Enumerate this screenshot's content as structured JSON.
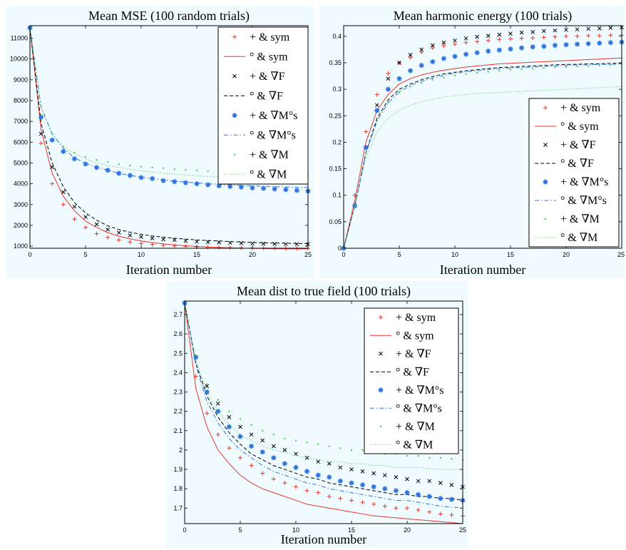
{
  "chart_data": [
    {
      "id": "mse",
      "type": "line",
      "title": "Mean MSE (100 random trials)",
      "xlabel": "Iteration number",
      "ylabel": "",
      "xlim": [
        0,
        25
      ],
      "ylim": [
        900,
        11600
      ],
      "xticks": [
        0,
        5,
        10,
        15,
        20,
        25
      ],
      "yticks": [
        1000,
        2000,
        3000,
        4000,
        5000,
        6000,
        7000,
        8000,
        9000,
        10000,
        11000
      ],
      "legend_position": "top-right",
      "grid": false,
      "x": [
        0,
        1,
        2,
        3,
        4,
        5,
        6,
        7,
        8,
        9,
        10,
        11,
        12,
        13,
        14,
        15,
        16,
        17,
        18,
        19,
        20,
        21,
        22,
        23,
        24,
        25
      ],
      "series": [
        {
          "name": "+ & sym",
          "style": "red-plus",
          "values": [
            11500,
            5950,
            4000,
            3000,
            2300,
            1900,
            1600,
            1420,
            1300,
            1200,
            1130,
            1080,
            1040,
            1010,
            990,
            970,
            950,
            940,
            930,
            920,
            910,
            905,
            900,
            898,
            895,
            892
          ]
        },
        {
          "name": "° & sym",
          "style": "red-solid",
          "values": [
            11500,
            6600,
            4500,
            3400,
            2700,
            2200,
            1900,
            1650,
            1480,
            1350,
            1250,
            1170,
            1110,
            1060,
            1020,
            990,
            960,
            940,
            920,
            905,
            895,
            885,
            878,
            872,
            868,
            864
          ]
        },
        {
          "name": "+ & ∇F",
          "style": "black-x",
          "values": [
            11500,
            6400,
            4800,
            3600,
            2900,
            2400,
            2050,
            1800,
            1650,
            1520,
            1450,
            1380,
            1330,
            1300,
            1250,
            1220,
            1200,
            1180,
            1160,
            1150,
            1130,
            1120,
            1110,
            1100,
            1100,
            1100
          ]
        },
        {
          "name": "° & ∇F",
          "style": "black-dashed",
          "values": [
            11500,
            6900,
            5000,
            3850,
            3100,
            2600,
            2250,
            1980,
            1800,
            1670,
            1570,
            1490,
            1430,
            1380,
            1340,
            1300,
            1270,
            1250,
            1220,
            1200,
            1180,
            1160,
            1150,
            1140,
            1130,
            1120
          ]
        },
        {
          "name": "+ & ∇M°s",
          "style": "blue-star",
          "values": [
            11500,
            7200,
            6100,
            5550,
            5200,
            4950,
            4780,
            4650,
            4500,
            4400,
            4300,
            4250,
            4150,
            4100,
            4050,
            4000,
            3950,
            3900,
            3870,
            3840,
            3800,
            3780,
            3750,
            3720,
            3680,
            3650
          ]
        },
        {
          "name": "° & ∇M°s",
          "style": "blue-dashdot",
          "values": [
            11500,
            7700,
            6400,
            5700,
            5250,
            4980,
            4800,
            4650,
            4500,
            4400,
            4320,
            4250,
            4180,
            4130,
            4080,
            4040,
            4000,
            3970,
            3940,
            3920,
            3900,
            3880,
            3860,
            3850,
            3830,
            3820
          ]
        },
        {
          "name": "+ & ∇M",
          "style": "green-dot",
          "values": [
            11500,
            7300,
            6400,
            5800,
            5500,
            5300,
            5150,
            5050,
            4950,
            4880,
            4820,
            4780,
            4750,
            4700,
            4670,
            4640,
            4610,
            4590,
            4570,
            4560,
            4540,
            4520,
            4510,
            4500,
            4490,
            4480
          ]
        },
        {
          "name": "° & ∇M",
          "style": "green-dotted",
          "values": [
            11500,
            7600,
            6400,
            5800,
            5450,
            5200,
            5000,
            4880,
            4780,
            4700,
            4620,
            4560,
            4500,
            4460,
            4420,
            4380,
            4350,
            4330,
            4310,
            4290,
            4270,
            4250,
            4240,
            4230,
            4220,
            4200
          ]
        }
      ]
    },
    {
      "id": "energy",
      "type": "line",
      "title": "Mean harmonic energy (100 trials)",
      "xlabel": "Iteration number",
      "ylabel": "",
      "xlim": [
        0,
        25
      ],
      "ylim": [
        0,
        0.42
      ],
      "xticks": [
        0,
        5,
        10,
        15,
        20,
        25
      ],
      "yticks": [
        0,
        0.05,
        0.1,
        0.15,
        0.2,
        0.25,
        0.3,
        0.35,
        0.4
      ],
      "legend_position": "bottom-right",
      "grid": false,
      "x": [
        0,
        1,
        2,
        3,
        4,
        5,
        6,
        7,
        8,
        9,
        10,
        11,
        12,
        13,
        14,
        15,
        16,
        17,
        18,
        19,
        20,
        21,
        22,
        23,
        24,
        25
      ],
      "series": [
        {
          "name": "+ & sym",
          "style": "red-plus",
          "values": [
            0,
            0.1,
            0.22,
            0.29,
            0.33,
            0.35,
            0.36,
            0.37,
            0.378,
            0.382,
            0.385,
            0.388,
            0.39,
            0.392,
            0.394,
            0.395,
            0.396,
            0.397,
            0.398,
            0.399,
            0.4,
            0.4,
            0.401,
            0.401,
            0.402,
            0.402
          ]
        },
        {
          "name": "° & sym",
          "style": "red-solid",
          "values": [
            0,
            0.09,
            0.2,
            0.26,
            0.29,
            0.31,
            0.32,
            0.327,
            0.332,
            0.336,
            0.339,
            0.342,
            0.344,
            0.346,
            0.348,
            0.349,
            0.35,
            0.351,
            0.352,
            0.353,
            0.354,
            0.355,
            0.356,
            0.357,
            0.358,
            0.359
          ]
        },
        {
          "name": "+ & ∇F",
          "style": "black-x",
          "values": [
            0,
            0.08,
            0.19,
            0.27,
            0.32,
            0.35,
            0.365,
            0.375,
            0.383,
            0.388,
            0.392,
            0.396,
            0.399,
            0.401,
            0.403,
            0.405,
            0.407,
            0.408,
            0.41,
            0.411,
            0.412,
            0.413,
            0.414,
            0.415,
            0.416,
            0.417
          ]
        },
        {
          "name": "° & ∇F",
          "style": "black-dashed",
          "values": [
            0,
            0.08,
            0.18,
            0.245,
            0.28,
            0.3,
            0.31,
            0.318,
            0.324,
            0.329,
            0.332,
            0.335,
            0.337,
            0.339,
            0.341,
            0.342,
            0.343,
            0.344,
            0.345,
            0.346,
            0.347,
            0.347,
            0.348,
            0.348,
            0.349,
            0.349
          ]
        },
        {
          "name": "+ & ∇M°s",
          "style": "blue-star",
          "values": [
            0,
            0.08,
            0.19,
            0.26,
            0.3,
            0.32,
            0.335,
            0.345,
            0.352,
            0.358,
            0.362,
            0.366,
            0.369,
            0.372,
            0.374,
            0.376,
            0.378,
            0.38,
            0.381,
            0.383,
            0.384,
            0.385,
            0.386,
            0.387,
            0.388,
            0.389
          ]
        },
        {
          "name": "° & ∇M°s",
          "style": "blue-dashdot",
          "values": [
            0,
            0.08,
            0.18,
            0.24,
            0.275,
            0.295,
            0.307,
            0.315,
            0.321,
            0.326,
            0.33,
            0.333,
            0.335,
            0.337,
            0.339,
            0.34,
            0.341,
            0.342,
            0.343,
            0.344,
            0.345,
            0.346,
            0.346,
            0.347,
            0.347,
            0.348
          ]
        },
        {
          "name": "+ & ∇M",
          "style": "green-dot",
          "values": [
            0,
            0.08,
            0.18,
            0.24,
            0.275,
            0.295,
            0.305,
            0.312,
            0.318,
            0.322,
            0.326,
            0.329,
            0.331,
            0.333,
            0.335,
            0.337,
            0.338,
            0.339,
            0.34,
            0.341,
            0.342,
            0.343,
            0.344,
            0.345,
            0.346,
            0.347
          ]
        },
        {
          "name": "° & ∇M",
          "style": "green-dotted",
          "values": [
            0,
            0.08,
            0.17,
            0.22,
            0.245,
            0.26,
            0.27,
            0.276,
            0.281,
            0.285,
            0.288,
            0.29,
            0.292,
            0.293,
            0.294,
            0.295,
            0.296,
            0.297,
            0.298,
            0.299,
            0.3,
            0.301,
            0.302,
            0.303,
            0.304,
            0.305
          ]
        }
      ]
    },
    {
      "id": "dist",
      "type": "line",
      "title": "Mean dist to true field (100 trials)",
      "xlabel": "Iteration number",
      "ylabel": "",
      "xlim": [
        0,
        25
      ],
      "ylim": [
        1.62,
        2.77
      ],
      "xticks": [
        0,
        5,
        10,
        15,
        20,
        25
      ],
      "yticks": [
        1.7,
        1.8,
        1.9,
        2,
        2.1,
        2.2,
        2.3,
        2.4,
        2.5,
        2.6,
        2.7
      ],
      "legend_position": "top-right",
      "grid": false,
      "x": [
        0,
        1,
        2,
        3,
        4,
        5,
        6,
        7,
        8,
        9,
        10,
        11,
        12,
        13,
        14,
        15,
        16,
        17,
        18,
        19,
        20,
        21,
        22,
        23,
        24,
        25
      ],
      "series": [
        {
          "name": "+ & sym",
          "style": "red-plus",
          "values": [
            2.76,
            2.38,
            2.19,
            2.08,
            2.01,
            1.96,
            1.92,
            1.88,
            1.85,
            1.83,
            1.81,
            1.79,
            1.78,
            1.76,
            1.75,
            1.74,
            1.73,
            1.72,
            1.71,
            1.7,
            1.7,
            1.69,
            1.68,
            1.67,
            1.665,
            1.66
          ]
        },
        {
          "name": "° & sym",
          "style": "red-solid",
          "values": [
            2.76,
            2.32,
            2.12,
            2.0,
            1.93,
            1.87,
            1.83,
            1.8,
            1.78,
            1.76,
            1.74,
            1.72,
            1.71,
            1.7,
            1.69,
            1.68,
            1.67,
            1.66,
            1.655,
            1.65,
            1.645,
            1.64,
            1.635,
            1.63,
            1.625,
            1.62
          ]
        },
        {
          "name": "+ & ∇F",
          "style": "black-x",
          "values": [
            2.76,
            2.48,
            2.33,
            2.24,
            2.17,
            2.12,
            2.08,
            2.05,
            2.02,
            2.0,
            1.98,
            1.96,
            1.94,
            1.93,
            1.91,
            1.9,
            1.89,
            1.88,
            1.87,
            1.86,
            1.85,
            1.84,
            1.84,
            1.83,
            1.82,
            1.81
          ]
        },
        {
          "name": "° & ∇F",
          "style": "black-dashed",
          "values": [
            2.76,
            2.45,
            2.28,
            2.17,
            2.09,
            2.03,
            1.98,
            1.95,
            1.92,
            1.9,
            1.88,
            1.86,
            1.85,
            1.83,
            1.82,
            1.81,
            1.8,
            1.79,
            1.78,
            1.77,
            1.77,
            1.76,
            1.76,
            1.75,
            1.75,
            1.74
          ]
        },
        {
          "name": "+ & ∇M°s",
          "style": "blue-star",
          "values": [
            2.76,
            2.48,
            2.3,
            2.2,
            2.12,
            2.07,
            2.02,
            1.99,
            1.96,
            1.93,
            1.91,
            1.89,
            1.87,
            1.86,
            1.84,
            1.83,
            1.82,
            1.81,
            1.8,
            1.79,
            1.78,
            1.77,
            1.76,
            1.75,
            1.745,
            1.74
          ]
        },
        {
          "name": "° & ∇M°s",
          "style": "blue-dashdot",
          "values": [
            2.76,
            2.44,
            2.25,
            2.14,
            2.06,
            2.0,
            1.96,
            1.92,
            1.89,
            1.87,
            1.85,
            1.83,
            1.82,
            1.8,
            1.79,
            1.78,
            1.77,
            1.76,
            1.75,
            1.74,
            1.74,
            1.73,
            1.72,
            1.71,
            1.705,
            1.7
          ]
        },
        {
          "name": "+ & ∇M",
          "style": "green-dot",
          "values": [
            2.76,
            2.49,
            2.34,
            2.26,
            2.2,
            2.16,
            2.13,
            2.1,
            2.08,
            2.06,
            2.05,
            2.04,
            2.03,
            2.02,
            2.01,
            2.0,
            2.0,
            1.99,
            1.98,
            1.98,
            1.97,
            1.97,
            1.96,
            1.96,
            1.955,
            1.95
          ]
        },
        {
          "name": "° & ∇M",
          "style": "green-dotted",
          "values": [
            2.76,
            2.47,
            2.3,
            2.2,
            2.13,
            2.08,
            2.05,
            2.02,
            2.0,
            1.99,
            1.97,
            1.96,
            1.95,
            1.94,
            1.94,
            1.93,
            1.93,
            1.92,
            1.92,
            1.91,
            1.91,
            1.91,
            1.905,
            1.9,
            1.9,
            1.9
          ]
        }
      ]
    }
  ],
  "styles": {
    "red-plus": {
      "color": "#e8352b",
      "marker": "plus",
      "line": "none"
    },
    "red-solid": {
      "color": "#e8352b",
      "marker": "none",
      "line": "solid"
    },
    "black-x": {
      "color": "#000000",
      "marker": "x",
      "line": "none"
    },
    "black-dashed": {
      "color": "#000000",
      "marker": "none",
      "line": "dashed"
    },
    "blue-star": {
      "color": "#2f73e0",
      "marker": "star",
      "line": "none"
    },
    "blue-dashdot": {
      "color": "#2f73e0",
      "marker": "none",
      "line": "dashdot"
    },
    "green-dot": {
      "color": "#3cc43c",
      "marker": "dot",
      "line": "none"
    },
    "green-dotted": {
      "color": "#3cc43c",
      "marker": "none",
      "line": "dotted"
    }
  }
}
